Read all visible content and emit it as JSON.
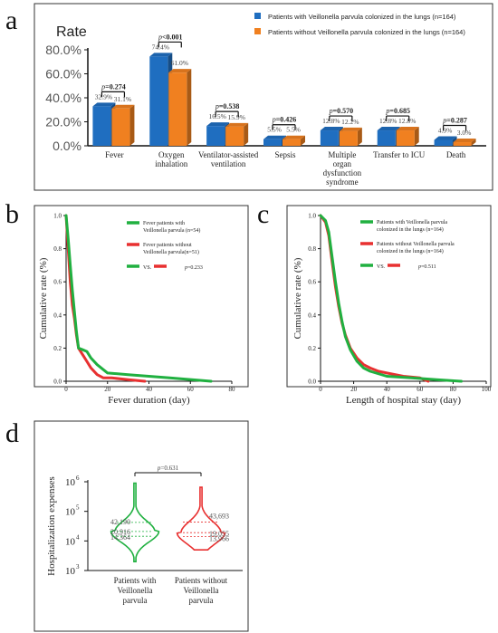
{
  "panels": {
    "a": "a",
    "b": "b",
    "c": "c",
    "d": "d"
  },
  "colors": {
    "blue": "#1f6ec0",
    "orange": "#f08020",
    "green": "#20b040",
    "red": "#e83030",
    "grey_text": "#555555"
  },
  "chart_data": [
    {
      "id": "a",
      "type": "bar",
      "title": "Rate",
      "ylim": [
        0,
        80
      ],
      "yticks": [
        "0.0%",
        "20.0%",
        "40.0%",
        "60.0%",
        "80.0%"
      ],
      "categories": [
        "Fever",
        "Oxygen inhalation",
        "Ventilator-assisted ventilation",
        "Sepsis",
        "Multiple organ dysfunction syndrome",
        "Transfer to ICU",
        "Death"
      ],
      "series": [
        {
          "name": "Patients with Veillonella parvula colonized in the lungs (n=164)",
          "values": [
            32.9,
            74.4,
            16.5,
            5.5,
            12.8,
            12.8,
            4.9
          ],
          "labels": [
            "32.9%",
            "74.4%",
            "16.5%",
            "5.5%",
            "12.8%",
            "12.8%",
            "4.9%"
          ]
        },
        {
          "name": "Patients without Veillonella parvula colonized in the lungs (n=164)",
          "values": [
            31.1,
            61.0,
            15.9,
            5.5,
            12.2,
            12.8,
            3.0
          ],
          "labels": [
            "31.1%",
            "61.0%",
            "15.9%",
            "5.5%",
            "12.2%",
            "12.8%",
            "3.0%"
          ]
        }
      ],
      "pvalues": [
        "p=0.274",
        "p<0.001",
        "p=0.538",
        "p=0.426",
        "p=0.570",
        "p=0.685",
        "p=0.287"
      ]
    },
    {
      "id": "b",
      "type": "line",
      "xlabel": "Fever duration (day)",
      "ylabel": "Cumulative rate (%)",
      "xlim": [
        0,
        80
      ],
      "ylim": [
        0,
        1.0
      ],
      "xticks": [
        "0",
        "20",
        "40",
        "60",
        "80"
      ],
      "yticks": [
        "0.0",
        "0.2",
        "0.4",
        "0.6",
        "0.8",
        "1.0"
      ],
      "legend": {
        "green": "Fever patients with Veillonella parvula (n=54)",
        "red": "Fever patients without Veillonella parvula(n=51)",
        "vs": "VS.",
        "p": "p=0.233"
      },
      "series": [
        {
          "name": "Fever patients with Veillonella parvula (n=54)",
          "x": [
            0,
            1,
            2,
            3,
            4,
            5,
            6,
            8,
            10,
            12,
            15,
            20,
            30,
            50,
            70
          ],
          "y": [
            1.0,
            0.86,
            0.7,
            0.55,
            0.42,
            0.3,
            0.2,
            0.19,
            0.18,
            0.14,
            0.1,
            0.05,
            0.04,
            0.02,
            0.0
          ]
        },
        {
          "name": "Fever patients without Veillonella parvula(n=51)",
          "x": [
            0,
            1,
            2,
            3,
            4,
            5,
            6,
            8,
            10,
            12,
            15,
            18,
            22,
            30,
            38
          ],
          "y": [
            1.0,
            0.8,
            0.6,
            0.46,
            0.38,
            0.28,
            0.2,
            0.16,
            0.12,
            0.08,
            0.04,
            0.02,
            0.02,
            0.01,
            0.0
          ]
        }
      ]
    },
    {
      "id": "c",
      "type": "line",
      "xlabel": "Length of hospital stay (day)",
      "ylabel": "Cumulative rate (%)",
      "xlim": [
        0,
        100
      ],
      "ylim": [
        0,
        1.0
      ],
      "xticks": [
        "0",
        "20",
        "40",
        "60",
        "80",
        "100"
      ],
      "yticks": [
        "0.0",
        "0.2",
        "0.4",
        "0.6",
        "0.8",
        "1.0"
      ],
      "legend": {
        "green": "Patients with Veillonella parvula colonized in the lungs (n=164)",
        "red": "Patients without Veillonella parvula colonized in the lungs (n=164)",
        "vs": "VS.",
        "p": "p=0.511"
      },
      "series": [
        {
          "name": "Patients with Veillonella parvula colonized in the lungs (n=164)",
          "x": [
            0,
            3,
            5,
            7,
            9,
            11,
            13,
            15,
            18,
            22,
            26,
            30,
            40,
            55,
            70,
            85
          ],
          "y": [
            1.0,
            0.97,
            0.9,
            0.75,
            0.6,
            0.47,
            0.36,
            0.27,
            0.19,
            0.12,
            0.08,
            0.06,
            0.03,
            0.02,
            0.01,
            0.0
          ]
        },
        {
          "name": "Patients without Veillonella parvula colonized in the lungs (n=164)",
          "x": [
            0,
            3,
            5,
            7,
            9,
            11,
            13,
            15,
            18,
            22,
            26,
            30,
            35,
            40,
            50,
            60,
            65
          ],
          "y": [
            1.0,
            0.96,
            0.88,
            0.72,
            0.57,
            0.45,
            0.35,
            0.28,
            0.2,
            0.14,
            0.1,
            0.08,
            0.06,
            0.05,
            0.03,
            0.02,
            0.0
          ]
        }
      ]
    },
    {
      "id": "d",
      "type": "violin",
      "ylabel": "Hospitalization expenses",
      "yscale": "log",
      "ylim": [
        1000,
        1000000
      ],
      "yticks": [
        "10",
        "10",
        "10",
        "10"
      ],
      "yticks_exp": [
        "3",
        "4",
        "5",
        "6"
      ],
      "categories": [
        "Patients with Veillonella parvula",
        "Patients without Veillonella parvula"
      ],
      "category_lines": [
        [
          "Patients with",
          "Veillonella",
          "parvula"
        ],
        [
          "Patients without",
          "Veillonella",
          "parvula"
        ]
      ],
      "pvalue": "p=0.631",
      "groups": [
        {
          "name": "Patients with Veillonella parvula",
          "q3": 42190,
          "median": 20916,
          "q1": 14364,
          "labels": [
            "42,190",
            "20,916",
            "14,364"
          ],
          "min": 2000,
          "max": 900000
        },
        {
          "name": "Patients without Veillonella parvula",
          "q3": 43693,
          "median": 19055,
          "q1": 13966,
          "labels": [
            "43,693",
            "19,055",
            "13,966"
          ],
          "min": 5000,
          "max": 650000
        }
      ]
    }
  ]
}
